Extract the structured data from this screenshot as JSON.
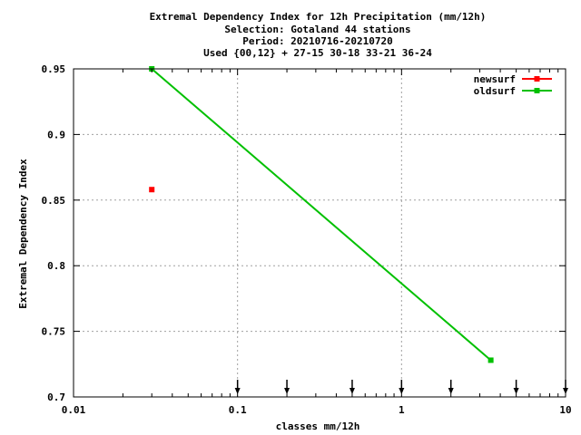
{
  "chart_data": {
    "type": "line",
    "title_lines": [
      "Extremal Dependency Index  for 12h Precipitation (mm/12h)",
      "Selection: Gotaland     44 stations",
      "Period: 20210716-20210720",
      "Used {00,12} + 27-15 30-18 33-21 36-24"
    ],
    "xlabel": "classes mm/12h",
    "ylabel": "Extremal Dependency Index",
    "x_scale": "log",
    "xlim": [
      0.01,
      10
    ],
    "ylim": [
      0.7,
      0.95
    ],
    "x_ticks": [
      0.01,
      0.1,
      1,
      10
    ],
    "x_tick_labels": [
      "0.01",
      "0.1",
      "1",
      "10"
    ],
    "y_ticks": [
      0.7,
      0.75,
      0.8,
      0.85,
      0.9,
      0.95
    ],
    "y_tick_labels": [
      "0.7",
      "0.75",
      "0.8",
      "0.85",
      "0.9",
      "0.95"
    ],
    "grid": true,
    "legend_position": "top-right",
    "class_markers": [
      0.1,
      0.2,
      0.5,
      1,
      2,
      5,
      10
    ],
    "series": [
      {
        "name": "newsurf",
        "color": "#ff0000",
        "x": [
          0.03
        ],
        "y": [
          0.858
        ]
      },
      {
        "name": "oldsurf",
        "color": "#00c000",
        "x": [
          0.03,
          3.5
        ],
        "y": [
          0.95,
          0.728
        ]
      }
    ]
  }
}
